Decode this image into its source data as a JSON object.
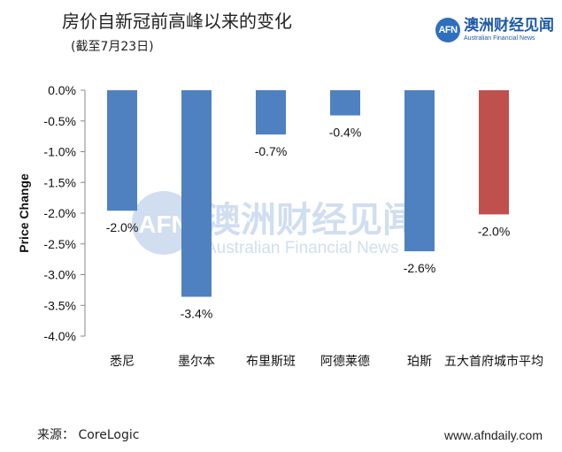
{
  "header": {
    "title": "房价自新冠前高峰以来的变化",
    "subtitle": "(截至7月23日)"
  },
  "logo": {
    "mark": "AFN",
    "name_cn": "澳洲财经见闻",
    "name_en": "Australian Financial News"
  },
  "watermark": {
    "mark": "AFN",
    "name_cn": "澳洲财经见闻",
    "name_en": "Australian Financial News"
  },
  "footer": {
    "source": "来源： CoreLogic",
    "website": "www.afndaily.com"
  },
  "colors": {
    "bar_default": "#4f81c0",
    "bar_highlight": "#c0504d",
    "axis": "#888888",
    "logo_blue": "#2e6fc0"
  },
  "chart_data": {
    "type": "bar",
    "title": "房价自新冠前高峰以来的变化",
    "subtitle": "(截至7月23日)",
    "xlabel": "",
    "ylabel": "Price Change",
    "ylim": [
      -4.0,
      0.0
    ],
    "yticks": [
      "0.0%",
      "-0.5%",
      "-1.0%",
      "-1.5%",
      "-2.0%",
      "-2.5%",
      "-3.0%",
      "-3.5%",
      "-4.0%"
    ],
    "grid": false,
    "categories": [
      "悉尼",
      "墨尔本",
      "布里斯班",
      "阿德莱德",
      "珀斯",
      "五大首府城市平均"
    ],
    "values": [
      -1.96,
      -3.36,
      -0.72,
      -0.41,
      -2.62,
      -2.02
    ],
    "data_labels": [
      "-2.0%",
      "-3.4%",
      "-0.7%",
      "-0.4%",
      "-2.6%",
      "-2.0%"
    ],
    "highlight_index": 5
  }
}
